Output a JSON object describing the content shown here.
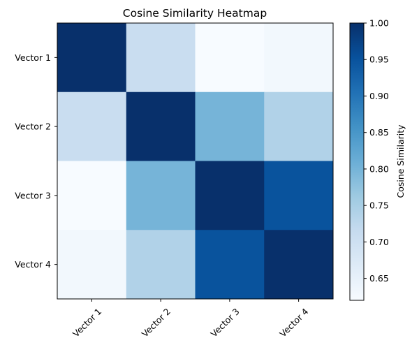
{
  "chart_data": {
    "type": "heatmap",
    "title": "Cosine Similarity Heatmap",
    "rows": [
      "Vector 1",
      "Vector 2",
      "Vector 3",
      "Vector 4"
    ],
    "columns": [
      "Vector 1",
      "Vector 2",
      "Vector 3",
      "Vector 4"
    ],
    "values": [
      [
        1.0,
        0.71,
        0.62,
        0.63
      ],
      [
        0.71,
        1.0,
        0.8,
        0.74
      ],
      [
        0.62,
        0.8,
        1.0,
        0.95
      ],
      [
        0.63,
        0.74,
        0.95,
        1.0
      ]
    ],
    "colormap": "Blues",
    "colormap_stops": [
      "#f7fbff",
      "#deebf7",
      "#c6dbef",
      "#9ecae1",
      "#6baed6",
      "#4292c6",
      "#2171b5",
      "#08519c",
      "#08306b"
    ],
    "vmin": 0.62,
    "vmax": 1.0,
    "colorbar": {
      "label": "Cosine Similarity",
      "ticks": [
        0.65,
        0.7,
        0.75,
        0.8,
        0.85,
        0.9,
        0.95,
        1.0
      ],
      "tick_labels": [
        "0.65",
        "0.70",
        "0.75",
        "0.80",
        "0.85",
        "0.90",
        "0.95",
        "1.00"
      ]
    },
    "x_tick_rotation": 45,
    "grid": false
  }
}
